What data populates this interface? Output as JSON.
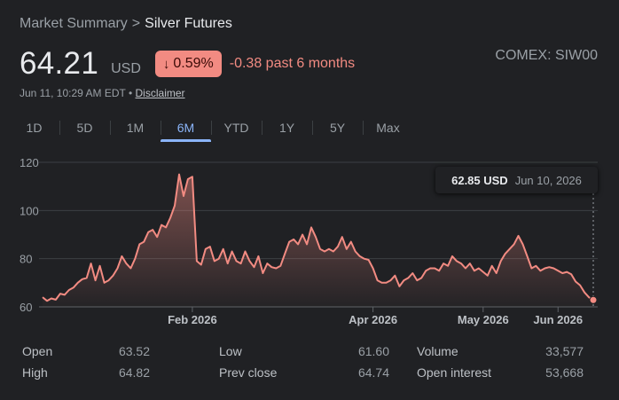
{
  "breadcrumb": {
    "parent": "Market Summary",
    "separator": ">",
    "current": "Silver Futures"
  },
  "price": {
    "value": "64.21",
    "currency": "USD"
  },
  "change": {
    "percent": "0.59%",
    "arrow": "↓",
    "text": "-0.38 past 6 months",
    "color": "#f28b82"
  },
  "exchange": "COMEX: SIW00",
  "meta": {
    "timestamp": "Jun 11, 10:29 AM EDT",
    "bullet": "•",
    "disclaimer": "Disclaimer"
  },
  "tabs": [
    "1D",
    "5D",
    "1M",
    "6M",
    "YTD",
    "1Y",
    "5Y",
    "Max"
  ],
  "active_tab": "6M",
  "tooltip": {
    "value": "62.85 USD",
    "date": "Jun 10, 2026"
  },
  "stats": {
    "col1": [
      {
        "label": "Open",
        "value": "63.52"
      },
      {
        "label": "High",
        "value": "64.82"
      }
    ],
    "col2": [
      {
        "label": "Low",
        "value": "61.60"
      },
      {
        "label": "Prev close",
        "value": "64.74"
      }
    ],
    "col3": [
      {
        "label": "Volume",
        "value": "33,577"
      },
      {
        "label": "Open interest",
        "value": "53,668"
      }
    ]
  },
  "chart_data": {
    "type": "area",
    "title": "",
    "xlabel": "",
    "ylabel": "",
    "ylim": [
      60,
      120
    ],
    "yticks": [
      60,
      80,
      100,
      120
    ],
    "xticks": [
      "Feb 2026",
      "Apr 2026",
      "May 2026",
      "Jun 2026"
    ],
    "grid": true,
    "line_color": "#f28b82",
    "series": [
      {
        "values": [
          64.0,
          62.5,
          63.5,
          63.0,
          65.5,
          65.0,
          67.0,
          68.0,
          70.0,
          71.5,
          72.0,
          78.0,
          71.0,
          77.0,
          70.0,
          71.0,
          73.0,
          76.0,
          81.0,
          78.0,
          76.0,
          80.0,
          86.0,
          87.0,
          91.0,
          92.0,
          89.0,
          94.0,
          93.0,
          97.0,
          102.0,
          115.0,
          106.0,
          113.0,
          114.0,
          79.0,
          77.5,
          84.0,
          85.0,
          79.0,
          80.0,
          84.0,
          78.0,
          83.0,
          79.0,
          78.0,
          83.0,
          79.0,
          76.5,
          81.0,
          74.0,
          78.0,
          76.5,
          76.0,
          77.0,
          82.0,
          87.0,
          88.0,
          86.0,
          90.0,
          86.0,
          93.0,
          89.0,
          84.0,
          83.0,
          84.0,
          83.0,
          85.0,
          89.0,
          84.0,
          87.0,
          83.0,
          81.0,
          80.0,
          79.5,
          76.0,
          71.0,
          70.0,
          70.0,
          71.0,
          73.0,
          68.5,
          71.0,
          72.0,
          74.0,
          71.0,
          72.0,
          75.0,
          76.0,
          76.0,
          75.0,
          78.0,
          77.0,
          81.0,
          79.0,
          78.0,
          76.0,
          78.0,
          75.0,
          76.0,
          74.5,
          73.0,
          77.0,
          74.0,
          79.0,
          82.0,
          84.0,
          86.0,
          89.5,
          86.0,
          81.0,
          76.0,
          77.0,
          75.0,
          76.0,
          76.5,
          76.0,
          75.0,
          74.0,
          74.5,
          73.5,
          70.5,
          69.0,
          66.0,
          64.0,
          62.85
        ]
      }
    ],
    "tick_positions": {
      "Feb 2026": 34,
      "Apr 2026": 75,
      "May 2026": 100,
      "Jun 2026": 117
    }
  }
}
